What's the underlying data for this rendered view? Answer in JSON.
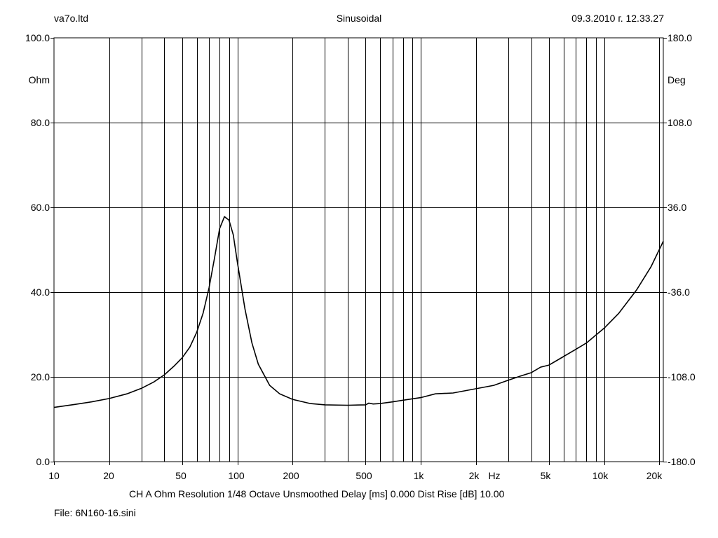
{
  "header": {
    "left": "va7o.ltd",
    "center": "Sinusoidal",
    "right": "09.3.2010 г. 12.33.27"
  },
  "footer": {
    "channel_info": "CH A   Ohm   Resolution 1/48 Octave   Unsmoothed   Delay [ms] 0.000   Dist Rise [dB] 10.00",
    "file": "File: 6N160-16.sini"
  },
  "chart_data": {
    "type": "line",
    "x_scale": "log",
    "xlim": [
      10,
      21000
    ],
    "ylim": [
      0,
      100
    ],
    "y2lim": [
      -180,
      180
    ],
    "grid": true,
    "ylabel": "Ohm",
    "y2label": "Deg",
    "xunit": "Hz",
    "x_ticks": [
      {
        "value": 10,
        "label": "10"
      },
      {
        "value": 20,
        "label": "20"
      },
      {
        "value": 50,
        "label": "50"
      },
      {
        "value": 100,
        "label": "100"
      },
      {
        "value": 200,
        "label": "200"
      },
      {
        "value": 500,
        "label": "500"
      },
      {
        "value": 1000,
        "label": "1k"
      },
      {
        "value": 2000,
        "label": "2k"
      },
      {
        "value": 5000,
        "label": "5k"
      },
      {
        "value": 10000,
        "label": "10k"
      },
      {
        "value": 20000,
        "label": "20k"
      }
    ],
    "y_ticks": [
      "0.0",
      "20.0",
      "40.0",
      "60.0",
      "80.0",
      "100.0"
    ],
    "y2_ticks": [
      "-180.0",
      "-108.0",
      "-36.0",
      "36.0",
      "108.0",
      "180.0"
    ],
    "colors": {
      "line": "#000000",
      "grid": "#000000"
    },
    "series": [
      {
        "x": [
          10,
          13,
          16,
          20,
          25,
          30,
          35,
          40,
          45,
          50,
          55,
          60,
          65,
          70,
          75,
          80,
          85,
          90,
          95,
          100,
          110,
          120,
          130,
          150,
          170,
          200,
          250,
          300,
          400,
          500,
          520,
          550,
          600,
          700,
          800,
          1000,
          1200,
          1500,
          2000,
          2500,
          3000,
          3500,
          4000,
          4500,
          5000,
          6000,
          7000,
          8000,
          10000,
          12000,
          15000,
          18000,
          21000
        ],
        "y": [
          12.8,
          13.5,
          14.1,
          14.9,
          16.0,
          17.3,
          18.8,
          20.5,
          22.5,
          24.5,
          27.0,
          30.5,
          35.0,
          41.0,
          48.0,
          55.0,
          57.8,
          57.0,
          53.5,
          47.0,
          36.0,
          28.0,
          23.0,
          18.0,
          16.0,
          14.7,
          13.7,
          13.4,
          13.3,
          13.4,
          13.8,
          13.6,
          13.7,
          14.1,
          14.5,
          15.1,
          16.0,
          16.2,
          17.2,
          18.0,
          19.2,
          20.2,
          21.0,
          22.3,
          22.8,
          24.8,
          26.5,
          28.0,
          31.5,
          35.0,
          40.5,
          46.0,
          52.0
        ]
      }
    ]
  }
}
